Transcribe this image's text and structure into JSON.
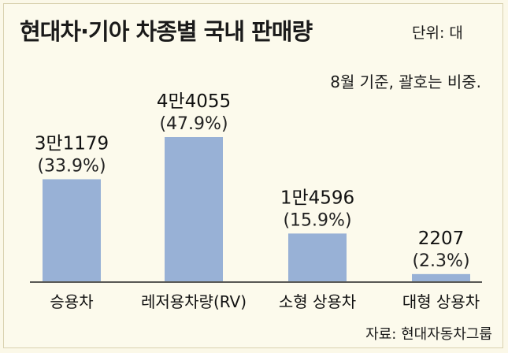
{
  "title": "현대차·기아 차종별 국내 판매량",
  "unit": "단위: 대",
  "note": "8월 기준, 괄호는 비중.",
  "source": "자료: 현대자동차그룹",
  "chart_data": {
    "type": "bar",
    "title": "현대차·기아 차종별 국내 판매량",
    "categories": [
      "승용차",
      "레저용차량(RV)",
      "소형 상용차",
      "대형 상용차"
    ],
    "values": [
      31179,
      44055,
      14596,
      2207
    ],
    "value_labels": [
      "3만1179",
      "4만4055",
      "1만4596",
      "2207"
    ],
    "share_labels": [
      "(33.9%)",
      "(47.9%)",
      "(15.9%)",
      "(2.3%)"
    ],
    "shares_percent": [
      33.9,
      47.9,
      15.9,
      2.3
    ],
    "ylim": [
      0,
      44055
    ],
    "grid": false,
    "colors": {
      "bar": "#98b1d6",
      "background": "#fbf8e8"
    }
  }
}
